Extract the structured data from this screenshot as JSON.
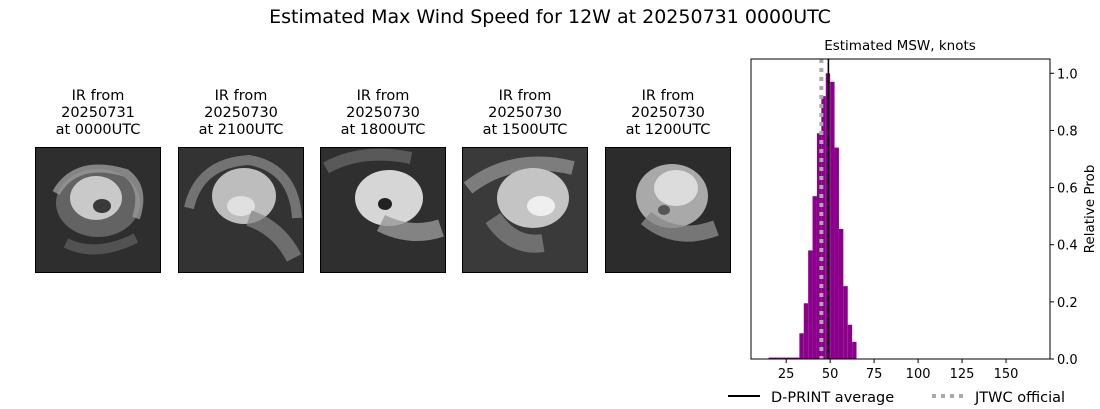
{
  "title": "Estimated Max Wind Speed for 12W at 20250731 0000UTC",
  "ir_panels": [
    {
      "line1": "IR from",
      "date": "20250731",
      "time": "at 0000UTC"
    },
    {
      "line1": "IR from",
      "date": "20250730",
      "time": "at 2100UTC"
    },
    {
      "line1": "IR from",
      "date": "20250730",
      "time": "at 1800UTC"
    },
    {
      "line1": "IR from",
      "date": "20250730",
      "time": "at 1500UTC"
    },
    {
      "line1": "IR from",
      "date": "20250730",
      "time": "at 1200UTC"
    }
  ],
  "chart_data": {
    "type": "bar",
    "title": "Estimated MSW, knots",
    "xlabel": "",
    "ylabel": "Relative Prob",
    "xlim": [
      5,
      175
    ],
    "ylim": [
      0,
      1.05
    ],
    "xticks": [
      25,
      50,
      75,
      100,
      125,
      150
    ],
    "yticks": [
      0.0,
      0.2,
      0.4,
      0.6,
      0.8,
      1.0
    ],
    "y_axis_side": "right",
    "bar_color": "#8b008b",
    "bin_width": 2.5,
    "bins": [
      {
        "x": 15,
        "y": 0.005
      },
      {
        "x": 17.5,
        "y": 0.005
      },
      {
        "x": 20,
        "y": 0.005
      },
      {
        "x": 22.5,
        "y": 0.005
      },
      {
        "x": 25,
        "y": 0.005
      },
      {
        "x": 27.5,
        "y": 0.005
      },
      {
        "x": 30,
        "y": 0.005
      },
      {
        "x": 32.5,
        "y": 0.09
      },
      {
        "x": 35,
        "y": 0.195
      },
      {
        "x": 37.5,
        "y": 0.38
      },
      {
        "x": 40,
        "y": 0.57
      },
      {
        "x": 42.5,
        "y": 0.79
      },
      {
        "x": 45,
        "y": 0.92
      },
      {
        "x": 47.5,
        "y": 1.0
      },
      {
        "x": 50,
        "y": 0.97
      },
      {
        "x": 52.5,
        "y": 0.74
      },
      {
        "x": 55,
        "y": 0.455
      },
      {
        "x": 57.5,
        "y": 0.255
      },
      {
        "x": 60,
        "y": 0.12
      },
      {
        "x": 62.5,
        "y": 0.06
      }
    ],
    "dprint_average": 49,
    "jtwc_official": 45,
    "legend": {
      "placement": "bottom-right",
      "dprint_label": "D-PRINT average",
      "jtwc_label": "JTWC official"
    },
    "colors": {
      "dprint": "#000000",
      "jtwc": "#aaaaaa"
    }
  }
}
